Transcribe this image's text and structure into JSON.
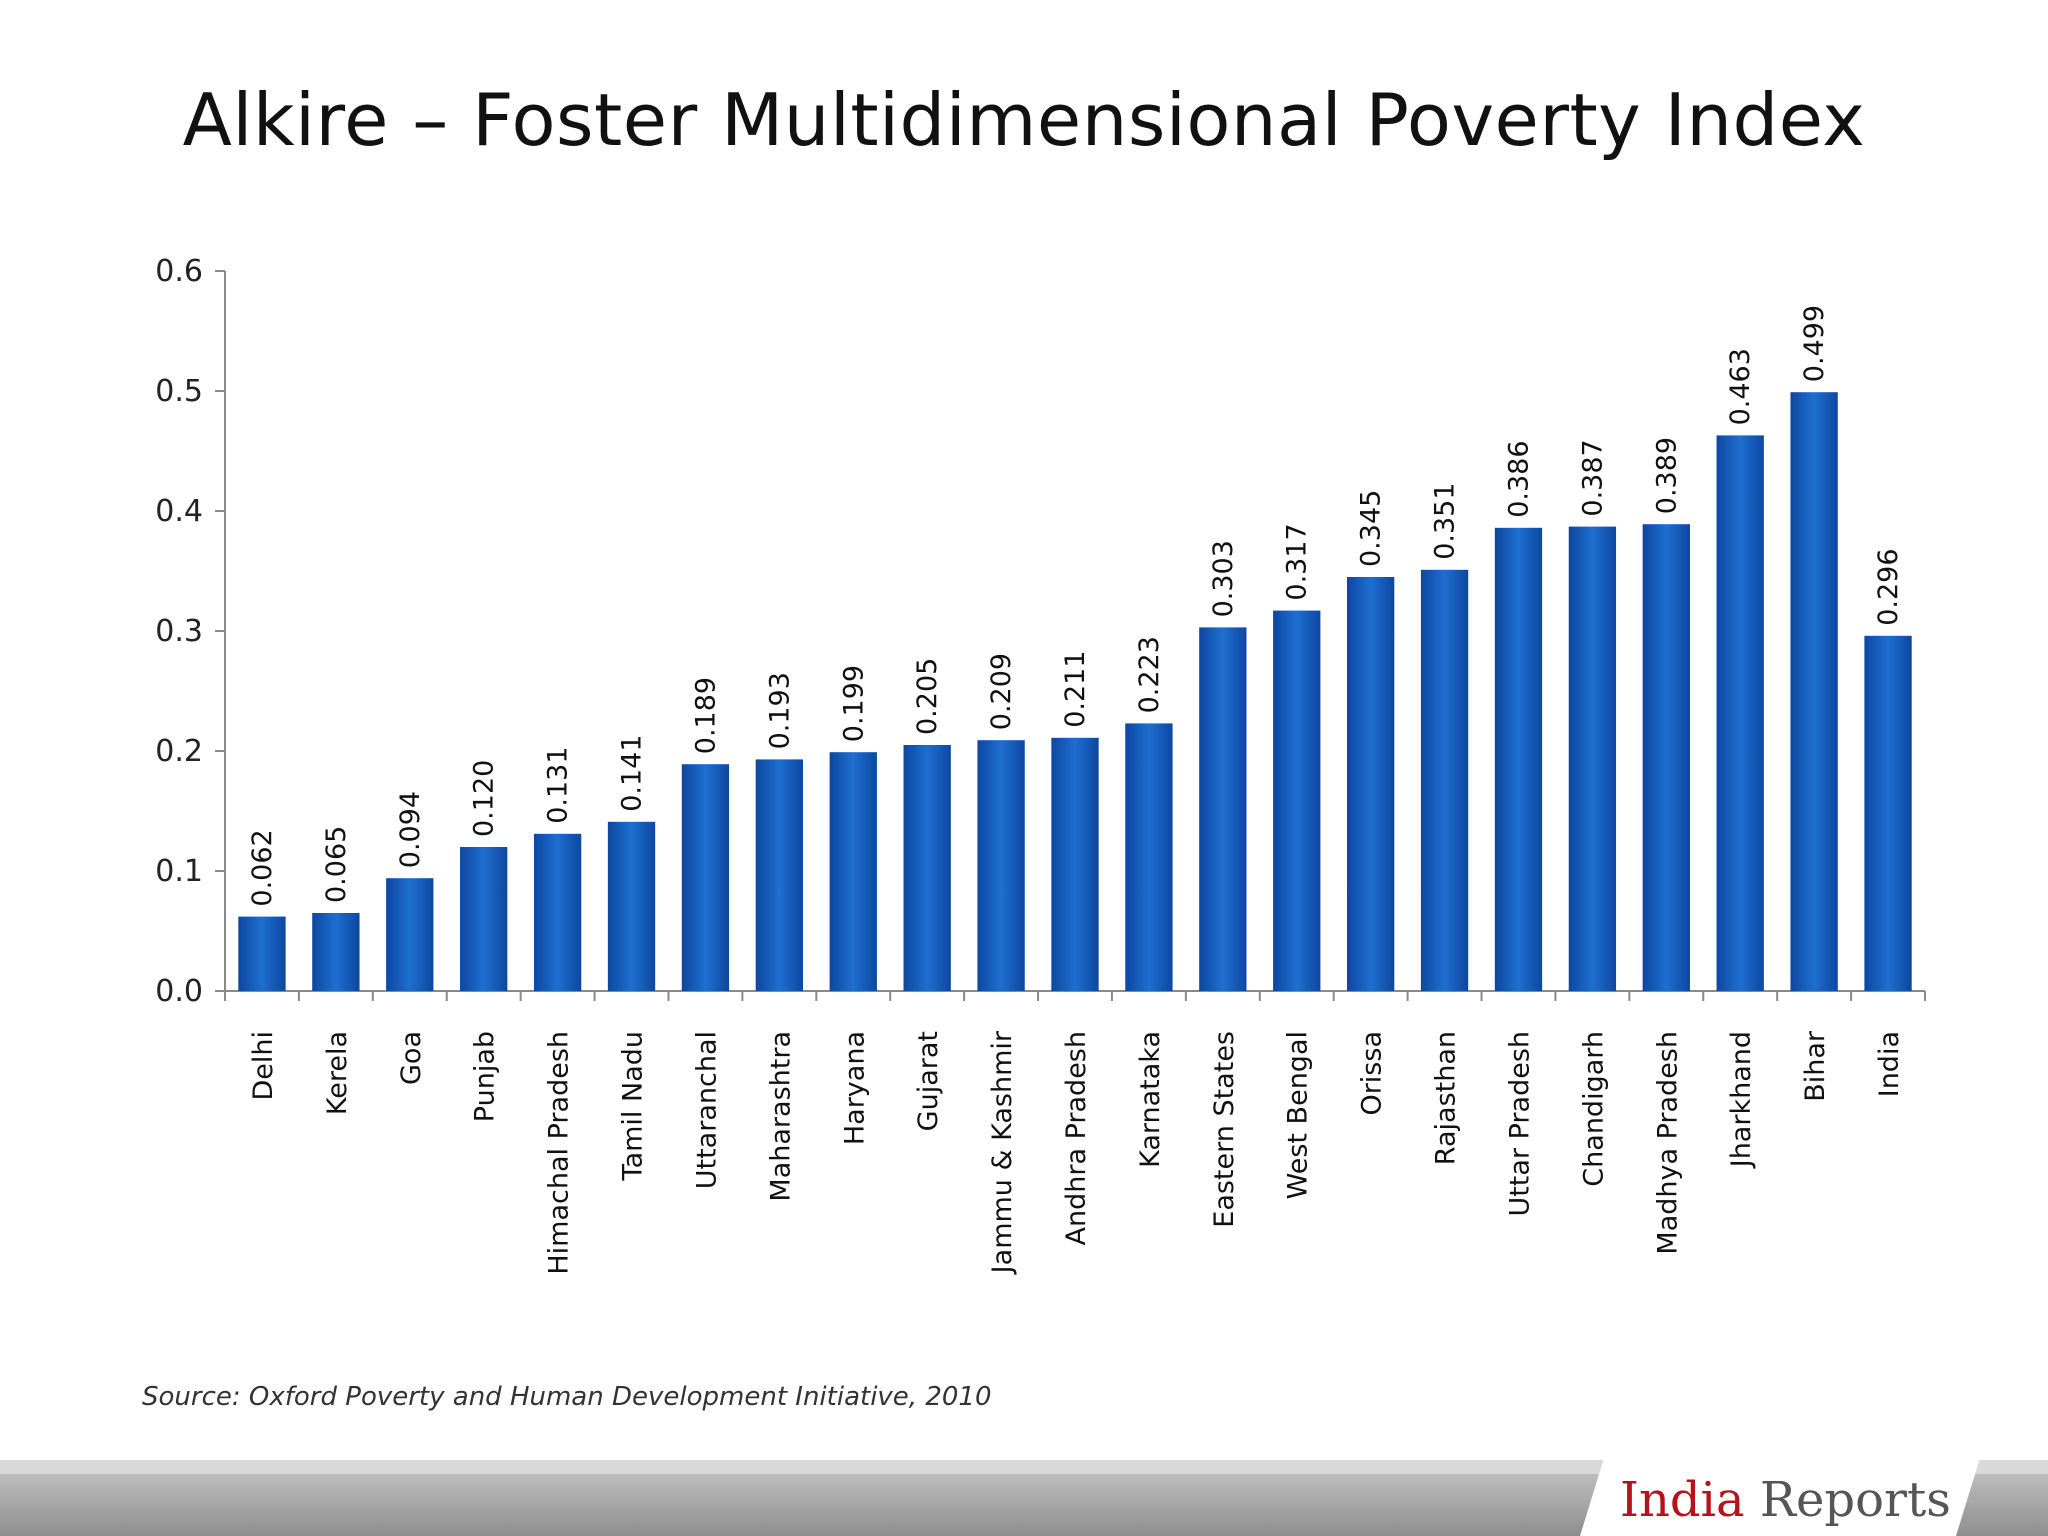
{
  "chart_data": {
    "type": "bar",
    "title": "Alkire – Foster Multidimensional Poverty Index",
    "categories": [
      "Delhi",
      "Kerela",
      "Goa",
      "Punjab",
      "Himachal Pradesh",
      "Tamil Nadu",
      "Uttaranchal",
      "Maharashtra",
      "Haryana",
      "Gujarat",
      "Jammu & Kashmir",
      "Andhra Pradesh",
      "Karnataka",
      "Eastern States",
      "West Bengal",
      "Orissa",
      "Rajasthan",
      "Uttar Pradesh",
      "Chandigarh",
      "Madhya Pradesh",
      "Jharkhand",
      "Bihar",
      "India"
    ],
    "values": [
      0.062,
      0.065,
      0.094,
      0.12,
      0.131,
      0.141,
      0.189,
      0.193,
      0.199,
      0.205,
      0.209,
      0.211,
      0.223,
      0.303,
      0.317,
      0.345,
      0.351,
      0.386,
      0.387,
      0.389,
      0.463,
      0.499,
      0.296
    ],
    "value_labels": [
      "0.062",
      "0.065",
      "0.094",
      "0.120",
      "0.131",
      "0.141",
      "0.189",
      "0.193",
      "0.199",
      "0.205",
      "0.209",
      "0.211",
      "0.223",
      "0.303",
      "0.317",
      "0.345",
      "0.351",
      "0.386",
      "0.387",
      "0.389",
      "0.463",
      "0.499",
      "0.296"
    ],
    "ylim": [
      0,
      0.6
    ],
    "yticks": [
      "0.0",
      "0.1",
      "0.2",
      "0.3",
      "0.4",
      "0.5",
      "0.6"
    ],
    "bar_color": "#1565c0",
    "grid": false,
    "legend": "none"
  },
  "source": "Source: Oxford Poverty and Human Development Initiative, 2010",
  "logo": {
    "part1": "India",
    "part2": " Reports",
    "accent_color": "#b5121b"
  }
}
